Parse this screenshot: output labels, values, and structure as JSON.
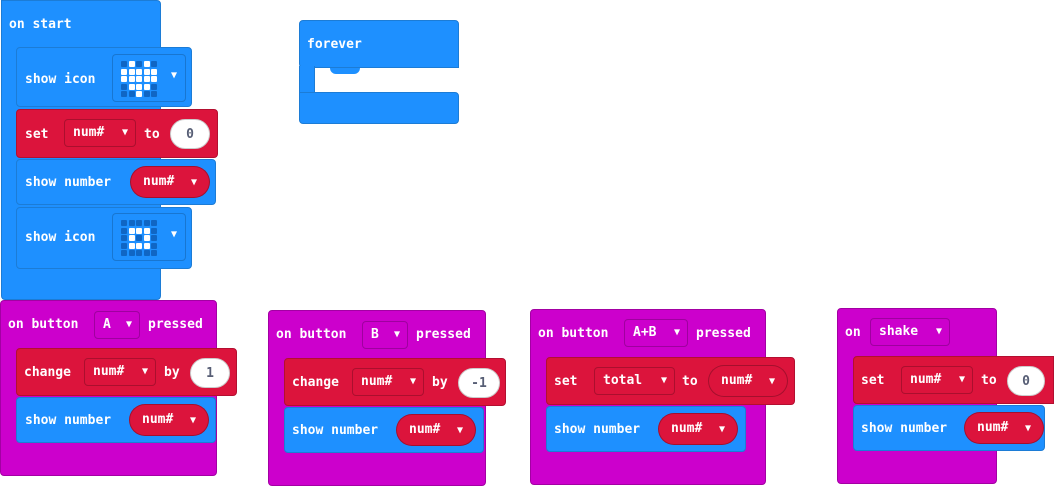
{
  "workspace": {
    "on_start": {
      "hat_label": "on start",
      "show_icon_label": "show icon",
      "icon_heart": "heart",
      "set_label": "set",
      "set_var": "num#",
      "to_label": "to",
      "set_value": "0",
      "show_number_label": "show number",
      "show_number_var": "num#",
      "show_icon2_label": "show icon",
      "icon_square": "small-square"
    },
    "forever": {
      "hat_label": "forever"
    },
    "button_a": {
      "on_label": "on button",
      "button": "A",
      "pressed_label": "pressed",
      "change_label": "change",
      "change_var": "num#",
      "by_label": "by",
      "by_value": "1",
      "show_number_label": "show number",
      "show_number_var": "num#"
    },
    "button_b": {
      "on_label": "on button",
      "button": "B",
      "pressed_label": "pressed",
      "change_label": "change",
      "change_var": "num#",
      "by_label": "by",
      "by_value": "-1",
      "show_number_label": "show number",
      "show_number_var": "num#"
    },
    "button_ab": {
      "on_label": "on button",
      "button": "A+B",
      "pressed_label": "pressed",
      "set_label": "set",
      "set_var": "total",
      "to_label": "to",
      "to_var": "num#",
      "show_number_label": "show number",
      "show_number_var": "num#"
    },
    "shake": {
      "on_label": "on",
      "gesture": "shake",
      "set_label": "set",
      "set_var": "num#",
      "to_label": "to",
      "set_value": "0",
      "show_number_label": "show number",
      "show_number_var": "num#"
    }
  },
  "caret": "▼",
  "colors": {
    "basic_blue": "#1e90ff",
    "variables_red": "#dc143c",
    "input_purple": "#cc00cc",
    "background": "#ffffff"
  }
}
